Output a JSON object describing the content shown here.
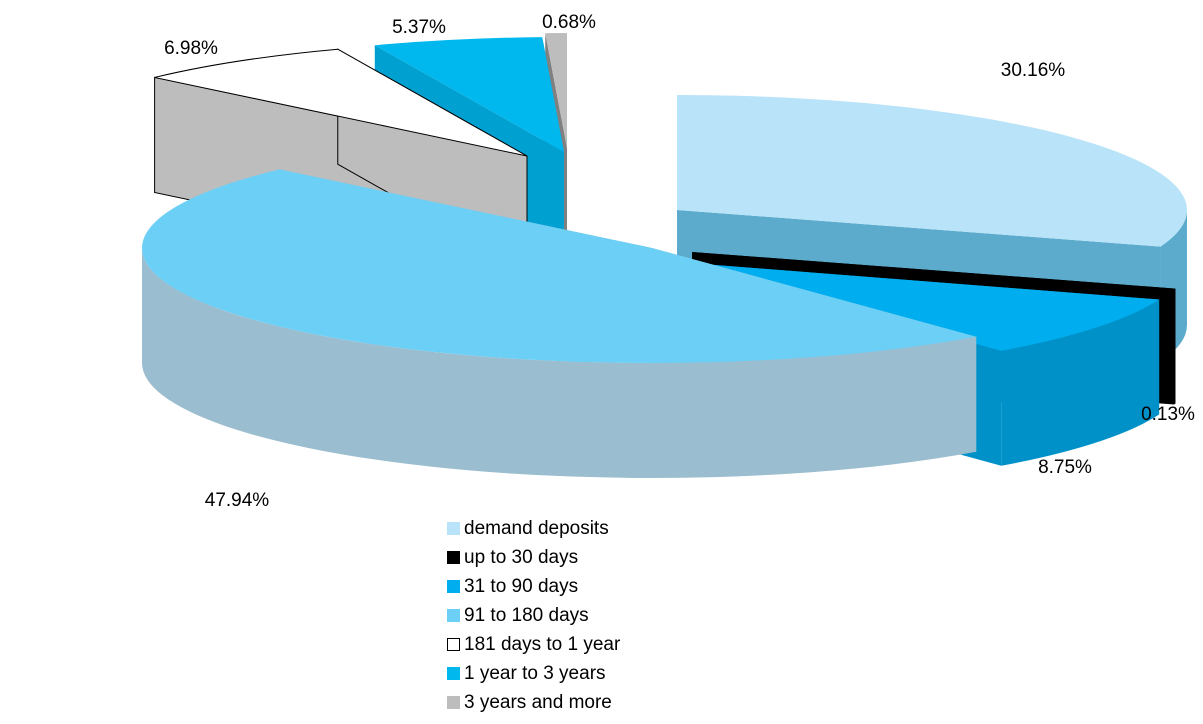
{
  "chart_data": {
    "type": "pie",
    "title": "",
    "style": "3d-exploded",
    "legend_position": "bottom",
    "series": [
      {
        "category": "demand deposits",
        "value": 30.16,
        "label": "30.16%",
        "color": "#b8e3f8",
        "color_side": "#5cabcc"
      },
      {
        "category": "up to 30 days",
        "value": 0.13,
        "label": "0.13%",
        "color": "#000000",
        "color_side": "#000000"
      },
      {
        "category": "31 to 90 days",
        "value": 8.75,
        "label": "8.75%",
        "color": "#00aeef",
        "color_side": "#0091c9"
      },
      {
        "category": "91 to 180 days",
        "value": 47.94,
        "label": "47.94%",
        "color": "#6ccff6",
        "color_side": "#9bbdd0"
      },
      {
        "category": "181 days to 1 year",
        "value": 6.98,
        "label": "6.98%",
        "color": "#ffffff",
        "color_side": "#bdbdbd"
      },
      {
        "category": "1 year to 3 years",
        "value": 5.37,
        "label": "5.37%",
        "color": "#00b8ee",
        "color_side": "#00a0d0"
      },
      {
        "category": "3 years and more",
        "value": 0.68,
        "label": "0.68%",
        "color": "#bdbdbd",
        "color_side": "#808080"
      }
    ]
  }
}
